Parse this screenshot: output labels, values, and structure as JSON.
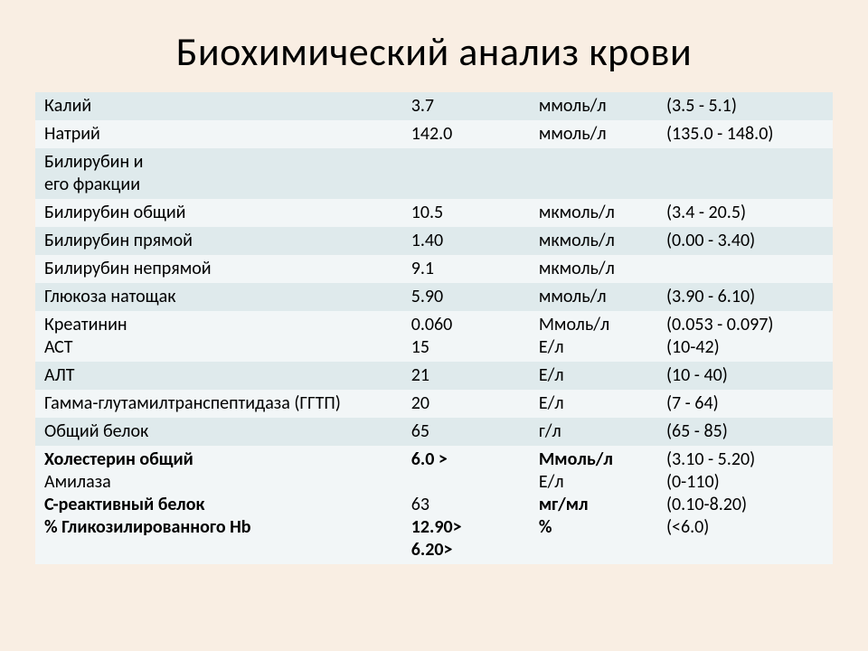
{
  "title": "Биохимический анализ крови",
  "colors": {
    "page_bg": "#f9eee3",
    "band_a": "#dfeaec",
    "band_b": "#f2f6f7",
    "text": "#000000"
  },
  "table": {
    "columns": [
      "name",
      "value",
      "unit",
      "range"
    ],
    "col_widths_pct": [
      46,
      16,
      16,
      22
    ],
    "font_size_pt": 15,
    "rows": [
      {
        "band": "a",
        "name": "Калий",
        "value": "3.7",
        "unit": "ммоль/л",
        "range": "(3.5 - 5.1)"
      },
      {
        "band": "b",
        "name": "Натрий",
        "value": "142.0",
        "unit": "ммоль/л",
        "range": "(135.0 - 148.0)"
      },
      {
        "band": "a",
        "name_lines": [
          "Билирубин и",
          "его фракции"
        ],
        "value": "",
        "unit": "",
        "range": ""
      },
      {
        "band": "b",
        "name": "Билирубин общий",
        "value": "10.5",
        "unit": "мкмоль/л",
        "range": "(3.4 - 20.5)"
      },
      {
        "band": "a",
        "name": "Билирубин прямой",
        "value": "1.40",
        "unit": "мкмоль/л",
        "range": "(0.00 - 3.40)"
      },
      {
        "band": "b",
        "name": "Билирубин непрямой",
        "value": "9.1",
        "unit": "мкмоль/л",
        "range": ""
      },
      {
        "band": "a",
        "name": "Глюкоза натощак",
        "value": "5.90",
        "unit": "ммоль/л",
        "range": "(3.90 - 6.10)"
      },
      {
        "band": "b",
        "name_lines": [
          "Креатинин",
          "АСТ"
        ],
        "value_lines": [
          "0.060",
          "15"
        ],
        "unit_lines": [
          "Ммоль/л",
          "Е/л"
        ],
        "range_lines": [
          "(0.053 - 0.097)",
          "(10-42)"
        ]
      },
      {
        "band": "a",
        "name": "АЛТ",
        "value": "21",
        "unit": "Е/л",
        "range": "(10 - 40)"
      },
      {
        "band": "b",
        "name": "Гамма-глутамилтранспептидаза (ГГТП)",
        "value": "20",
        "unit": "Е/л",
        "range": "(7 - 64)"
      },
      {
        "band": "a",
        "name": "Общий белок",
        "value": "65",
        "unit": "г/л",
        "range": "(65 - 85)"
      },
      {
        "band": "b",
        "name_lines": [
          "Холестерин общий",
          "Амилаза",
          "С-реактивный белок",
          "% Гликозилированного Hb"
        ],
        "name_bold_idx": [
          0,
          2,
          3
        ],
        "value_lines": [
          "6.0 >",
          "",
          "63",
          "12.90>",
          "6.20>"
        ],
        "value_bold_idx": [
          0,
          3,
          4
        ],
        "unit_lines": [
          "Ммоль/л",
          "Е/л",
          "мг/мл",
          "%"
        ],
        "unit_bold_idx": [
          0,
          2,
          3
        ],
        "range_lines": [
          "(3.10 - 5.20)",
          "(0-110)",
          "(0.10-8.20)",
          "(<6.0)"
        ]
      }
    ]
  }
}
